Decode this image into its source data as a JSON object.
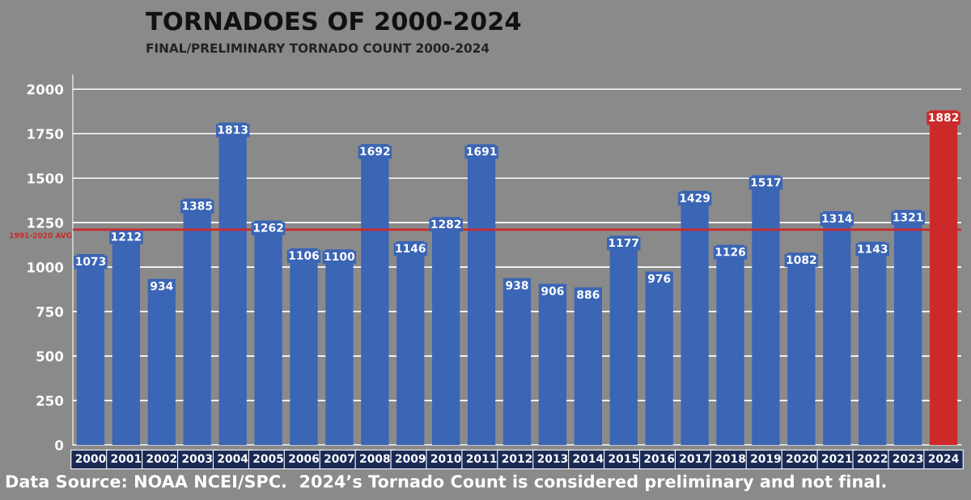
{
  "chart_data": {
    "type": "bar",
    "title": "TORNADOES OF 2000-2024",
    "subtitle": "FINAL/PRELIMINARY TORNADO COUNT 2000-2024",
    "categories": [
      "2000",
      "2001",
      "2002",
      "2003",
      "2004",
      "2005",
      "2006",
      "2007",
      "2008",
      "2009",
      "2010",
      "2011",
      "2012",
      "2013",
      "2014",
      "2015",
      "2016",
      "2017",
      "2018",
      "2019",
      "2020",
      "2021",
      "2022",
      "2023",
      "2024"
    ],
    "values": [
      1073,
      1212,
      934,
      1385,
      1813,
      1262,
      1106,
      1100,
      1692,
      1146,
      1282,
      1691,
      938,
      906,
      886,
      1177,
      976,
      1429,
      1126,
      1517,
      1082,
      1314,
      1143,
      1321,
      1882
    ],
    "colors": [
      "#3b65b5",
      "#3b65b5",
      "#3b65b5",
      "#3b65b5",
      "#3b65b5",
      "#3b65b5",
      "#3b65b5",
      "#3b65b5",
      "#3b65b5",
      "#3b65b5",
      "#3b65b5",
      "#3b65b5",
      "#3b65b5",
      "#3b65b5",
      "#3b65b5",
      "#3b65b5",
      "#3b65b5",
      "#3b65b5",
      "#3b65b5",
      "#3b65b5",
      "#3b65b5",
      "#3b65b5",
      "#3b65b5",
      "#3b65b5",
      "#cc2a2a"
    ],
    "ylim": [
      0,
      2080
    ],
    "yticks": [
      0,
      250,
      500,
      750,
      1000,
      1250,
      1500,
      1750,
      2000
    ],
    "grid": "y",
    "data_labels": true,
    "ref_lines": [
      {
        "axis": "y",
        "value": 1210,
        "label": "1991-2020 AVG",
        "color": "#cc2a2a"
      }
    ],
    "annotations": [
      "Data Source: NOAA NCEI/SPC.  2024’s Tornado Count is considered preliminary and not final."
    ]
  }
}
